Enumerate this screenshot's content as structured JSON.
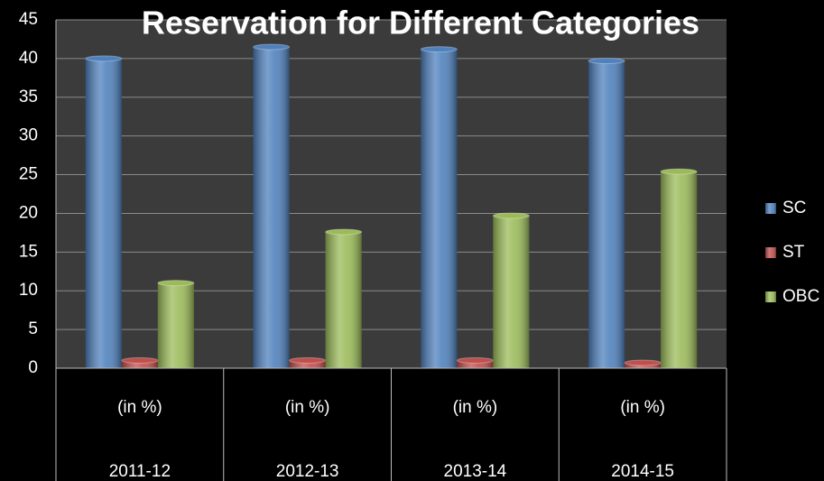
{
  "chart_data": {
    "type": "bar",
    "title": "Reservation for Different Categories",
    "categories": [
      "(in %)",
      "(in %)",
      "(in %)",
      "(in %)"
    ],
    "category_groups": [
      "2011-12",
      "2012-13",
      "2013-14",
      "2014-15"
    ],
    "series": [
      {
        "name": "SC",
        "color": "#4f81bd",
        "values": [
          40,
          41.5,
          41.2,
          39.7
        ]
      },
      {
        "name": "ST",
        "color": "#c0504d",
        "values": [
          1,
          1,
          1,
          0.7
        ]
      },
      {
        "name": "OBC",
        "color": "#9bbb59",
        "values": [
          11,
          17.6,
          19.7,
          25.4
        ]
      }
    ],
    "ylim": [
      0,
      45
    ],
    "yticks": [
      0,
      5,
      10,
      15,
      20,
      25,
      30,
      35,
      40,
      45
    ],
    "grid": true,
    "legend": "right"
  }
}
